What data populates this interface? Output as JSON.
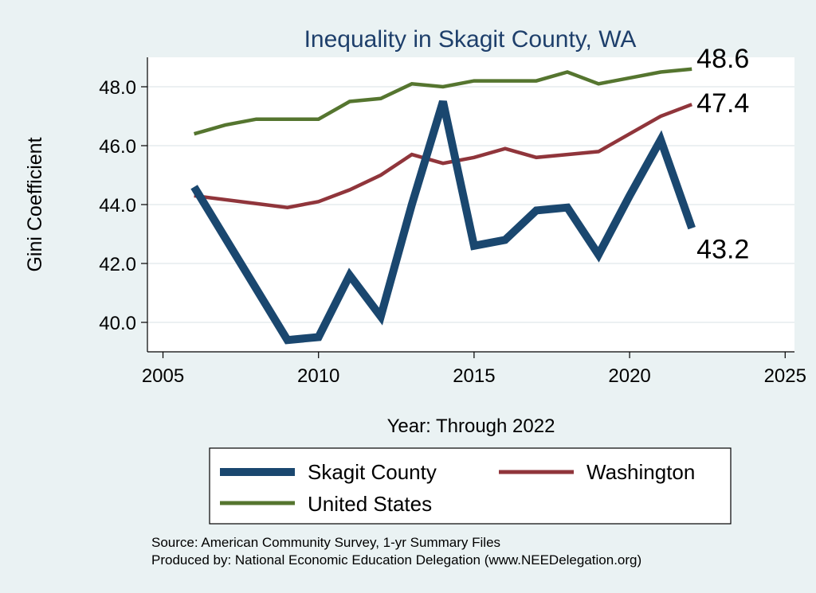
{
  "chart_data": {
    "type": "line",
    "title": "Inequality in Skagit County, WA",
    "xlabel": "Year: Through 2022",
    "ylabel": "Gini Coefficient",
    "xlim": [
      2004.5,
      2025.3
    ],
    "ylim": [
      39.0,
      49.0
    ],
    "xticks": [
      2005,
      2010,
      2015,
      2020,
      2025
    ],
    "yticks": [
      40.0,
      42.0,
      44.0,
      46.0,
      48.0
    ],
    "ytick_labels": [
      "40.0",
      "42.0",
      "44.0",
      "46.0",
      "48.0"
    ],
    "grid": true,
    "series": [
      {
        "name": "Skagit County",
        "color": "#1a476f",
        "x": [
          2006,
          2009,
          2010,
          2011,
          2012,
          2013,
          2014,
          2015,
          2016,
          2017,
          2018,
          2019,
          2020,
          2021,
          2022
        ],
        "values": [
          44.6,
          39.4,
          39.5,
          41.6,
          40.2,
          44.0,
          47.5,
          42.6,
          42.8,
          43.8,
          43.9,
          42.3,
          44.3,
          46.2,
          43.2
        ],
        "end_label": "43.2"
      },
      {
        "name": "Washington",
        "color": "#90353b",
        "x": [
          2006,
          2009,
          2010,
          2011,
          2012,
          2013,
          2014,
          2015,
          2016,
          2017,
          2018,
          2019,
          2020,
          2021,
          2022
        ],
        "values": [
          44.3,
          43.9,
          44.1,
          44.5,
          45.0,
          45.7,
          45.4,
          45.6,
          45.9,
          45.6,
          45.7,
          45.8,
          46.4,
          47.0,
          47.4
        ],
        "end_label": "47.4"
      },
      {
        "name": "United States",
        "color": "#55752f",
        "x": [
          2006,
          2007,
          2008,
          2009,
          2010,
          2011,
          2012,
          2013,
          2014,
          2015,
          2016,
          2017,
          2018,
          2019,
          2020,
          2021,
          2022
        ],
        "values": [
          46.4,
          46.7,
          46.9,
          46.9,
          46.9,
          47.5,
          47.6,
          48.1,
          48.0,
          48.2,
          48.2,
          48.2,
          48.5,
          48.1,
          48.3,
          48.5,
          48.6
        ],
        "end_label": "48.6"
      }
    ],
    "legend": {
      "position": "bottom",
      "items": [
        "Skagit County",
        "Washington",
        "United States"
      ]
    },
    "notes": [
      "Source: American Community Survey, 1-yr Summary Files",
      "Produced by: National Economic Education Delegation (www.NEEDelegation.org)"
    ]
  }
}
